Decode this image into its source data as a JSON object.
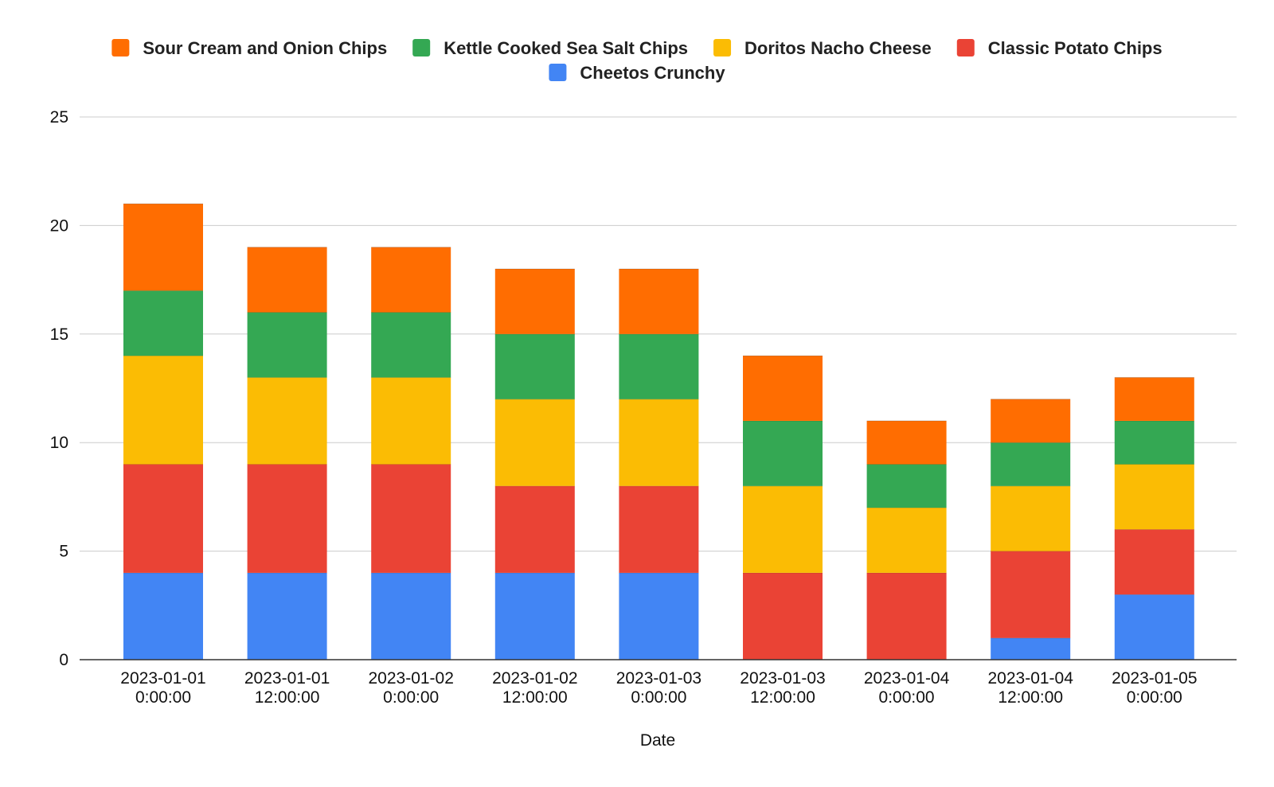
{
  "chart_data": {
    "type": "bar",
    "stacked": true,
    "title": "",
    "xlabel": "Date",
    "ylabel": "",
    "ylim": [
      0,
      25
    ],
    "yticks": [
      0,
      5,
      10,
      15,
      20,
      25
    ],
    "grid": true,
    "legend_position": "top-center",
    "categories": [
      [
        "2023-01-01",
        "0:00:00"
      ],
      [
        "2023-01-01",
        "12:00:00"
      ],
      [
        "2023-01-02",
        "0:00:00"
      ],
      [
        "2023-01-02",
        "12:00:00"
      ],
      [
        "2023-01-03",
        "0:00:00"
      ],
      [
        "2023-01-03",
        "12:00:00"
      ],
      [
        "2023-01-04",
        "0:00:00"
      ],
      [
        "2023-01-04",
        "12:00:00"
      ],
      [
        "2023-01-05",
        "0:00:00"
      ]
    ],
    "series": [
      {
        "name": "Cheetos Crunchy",
        "color": "#4285F4",
        "values": [
          4,
          4,
          4,
          4,
          4,
          0,
          0,
          1,
          3
        ]
      },
      {
        "name": "Classic Potato Chips",
        "color": "#EA4335",
        "values": [
          5,
          5,
          5,
          4,
          4,
          4,
          4,
          4,
          3
        ]
      },
      {
        "name": "Doritos Nacho Cheese",
        "color": "#FBBC04",
        "values": [
          5,
          4,
          4,
          4,
          4,
          4,
          3,
          3,
          3
        ]
      },
      {
        "name": "Kettle Cooked Sea Salt Chips",
        "color": "#34A853",
        "values": [
          3,
          3,
          3,
          3,
          3,
          3,
          2,
          2,
          2
        ]
      },
      {
        "name": "Sour Cream and Onion Chips",
        "color": "#FF6D01",
        "values": [
          4,
          3,
          3,
          3,
          3,
          3,
          2,
          2,
          2
        ]
      }
    ],
    "legend_order": [
      "Sour Cream and Onion Chips",
      "Kettle Cooked Sea Salt Chips",
      "Doritos Nacho Cheese",
      "Classic Potato Chips",
      "Cheetos Crunchy"
    ]
  }
}
